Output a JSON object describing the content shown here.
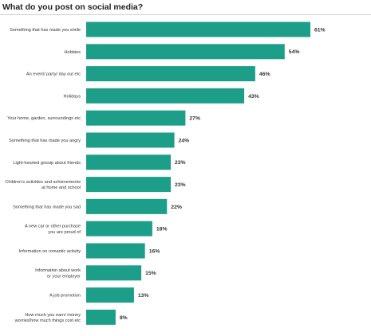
{
  "chart_data": {
    "type": "bar",
    "orientation": "horizontal",
    "title": "What do you post on social media?",
    "xlabel": "",
    "ylabel": "",
    "xlim": [
      0,
      61
    ],
    "bar_color": "#1d9e89",
    "categories": [
      [
        "Something that has made you smile"
      ],
      [
        "Hobbies"
      ],
      [
        "An event/ party/ day out etc"
      ],
      [
        "Holidays"
      ],
      [
        "Your home, garden, surroundings etc"
      ],
      [
        "Something that has made you angry"
      ],
      [
        "Light-hearted gossip about friends"
      ],
      [
        "Children's activities and achievements",
        "at home and school"
      ],
      [
        "Something that has made you sad"
      ],
      [
        "A new car or other purchase",
        "you are proud of"
      ],
      [
        "Information on romantic activity"
      ],
      [
        "Information about work",
        "or your employer"
      ],
      [
        "A job promotion"
      ],
      [
        "How much you earn/ money",
        "worries/how much things cost etc"
      ]
    ],
    "values": [
      61,
      54,
      46,
      43,
      27,
      24,
      23,
      23,
      22,
      18,
      16,
      15,
      13,
      8
    ],
    "value_labels": [
      "61%",
      "54%",
      "46%",
      "43%",
      "27%",
      "24%",
      "23%",
      "23%",
      "22%",
      "18%",
      "16%",
      "15%",
      "13%",
      "8%"
    ]
  }
}
